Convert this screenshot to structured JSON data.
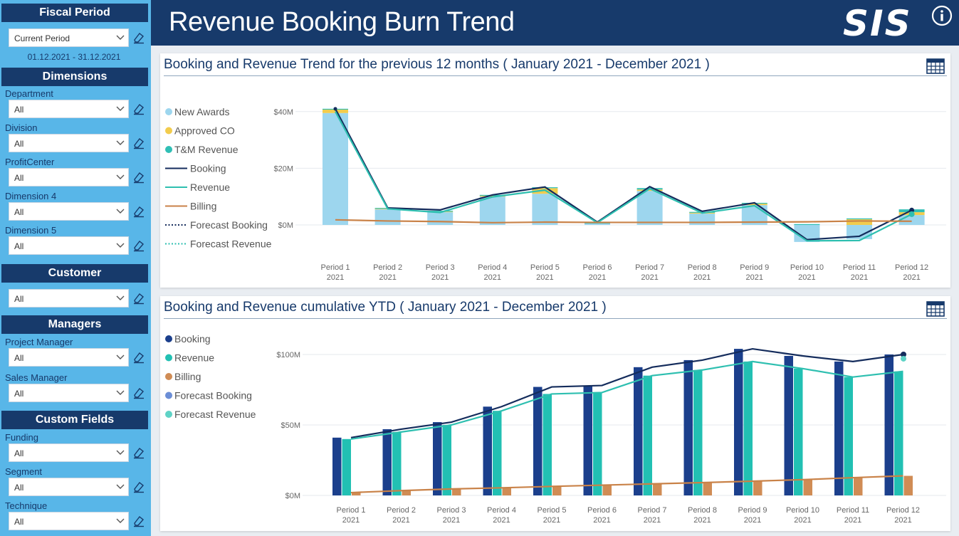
{
  "sidebar": {
    "fiscal_period": {
      "heading": "Fiscal Period",
      "selected": "Current Period",
      "date_range": "01.12.2021 - 31.12.2021"
    },
    "dimensions": {
      "heading": "Dimensions",
      "fields": [
        {
          "label": "Department",
          "value": "All"
        },
        {
          "label": "Division",
          "value": "All"
        },
        {
          "label": "ProfitCenter",
          "value": "All"
        },
        {
          "label": "Dimension 4",
          "value": "All"
        },
        {
          "label": "Dimension 5",
          "value": "All"
        }
      ]
    },
    "customer": {
      "heading": "Customer",
      "value": "All"
    },
    "managers": {
      "heading": "Managers",
      "fields": [
        {
          "label": "Project Manager",
          "value": "All"
        },
        {
          "label": "Sales Manager",
          "value": "All"
        }
      ]
    },
    "custom_fields": {
      "heading": "Custom Fields",
      "fields": [
        {
          "label": "Funding",
          "value": "All"
        },
        {
          "label": "Segment",
          "value": "All"
        },
        {
          "label": "Technique",
          "value": "All"
        }
      ]
    }
  },
  "header": {
    "title": "Revenue Booking Burn Trend",
    "logo_text": "SIS",
    "info_icon": "info-circle-icon"
  },
  "colors": {
    "navy": "#173a6b",
    "sidebar": "#58b6e8",
    "new_awards": "#9dd6ee",
    "approved_co": "#f2cc4d",
    "tm_revenue": "#30bfb5",
    "booking": "#142c5c",
    "revenue": "#2ebfb0",
    "billing": "#c98248",
    "bar_booking": "#1b3f8c",
    "bar_revenue": "#22c0b3",
    "bar_billing": "#d08c55",
    "forecast_booking": "#6b8ed6",
    "forecast_revenue": "#5fd3c6"
  },
  "chart_data": [
    {
      "type": "bar",
      "title": "Booking and Revenue Trend for the previous 12 months ( January 2021 - December 2021 )",
      "categories": [
        "Period 1|2021",
        "Period 2|2021",
        "Period 3|2021",
        "Period 4|2021",
        "Period 5|2021",
        "Period 6|2021",
        "Period 7|2021",
        "Period 8|2021",
        "Period 9|2021",
        "Period 10|2021",
        "Period 11|2021",
        "Period 12|2021"
      ],
      "y_ticks": [
        "$40M",
        "$20M",
        "$0M"
      ],
      "y_tick_values": [
        40,
        20,
        0
      ],
      "ylim": [
        -7,
        45
      ],
      "unit": "$M",
      "legend": [
        "New Awards",
        "Approved CO",
        "T&M Revenue",
        "Booking",
        "Revenue",
        "Billing",
        "Forecast Booking",
        "Forecast Revenue"
      ],
      "legend_position": "left",
      "stacked_series": [
        {
          "name": "New Awards",
          "values": [
            39.5,
            5.5,
            4.5,
            10.0,
            11.0,
            0.5,
            12.0,
            4.0,
            7.0,
            -6.0,
            -5.0,
            3.5
          ]
        },
        {
          "name": "Approved CO",
          "values": [
            1.2,
            0.2,
            0.2,
            0.3,
            2.0,
            0.0,
            0.5,
            0.3,
            0.5,
            0.0,
            2.0,
            1.0
          ]
        },
        {
          "name": "T&M Revenue",
          "values": [
            0.3,
            0.3,
            0.3,
            0.3,
            0.3,
            0.3,
            0.5,
            0.3,
            0.3,
            0.3,
            0.3,
            1.0
          ]
        }
      ],
      "series": [
        {
          "name": "Booking",
          "values": [
            41.0,
            6.0,
            5.3,
            10.6,
            13.4,
            1.0,
            13.5,
            4.8,
            7.8,
            -5.2,
            -4.0,
            5.2
          ]
        },
        {
          "name": "Revenue",
          "values": [
            40.0,
            5.7,
            4.4,
            9.9,
            12.3,
            0.8,
            12.8,
            4.2,
            6.8,
            -5.6,
            -5.5,
            3.8
          ]
        },
        {
          "name": "Billing",
          "values": [
            1.8,
            1.4,
            1.2,
            0.8,
            1.0,
            0.9,
            0.9,
            0.9,
            1.0,
            1.1,
            1.4,
            1.3
          ]
        }
      ]
    },
    {
      "type": "bar",
      "title": "Booking and Revenue cumulative YTD ( January 2021 - December 2021 )",
      "categories": [
        "Period 1|2021",
        "Period 2|2021",
        "Period 3|2021",
        "Period 4|2021",
        "Period 5|2021",
        "Period 6|2021",
        "Period 7|2021",
        "Period 8|2021",
        "Period 9|2021",
        "Period 10|2021",
        "Period 11|2021",
        "Period 12|2021"
      ],
      "y_ticks": [
        "$100M",
        "$50M",
        "$0M"
      ],
      "y_tick_values": [
        100,
        50,
        0
      ],
      "ylim": [
        0,
        108
      ],
      "unit": "$M",
      "legend": [
        "Booking",
        "Revenue",
        "Billing",
        "Forecast Booking",
        "Forecast Revenue"
      ],
      "legend_position": "left",
      "series": [
        {
          "name": "Booking",
          "values": [
            41,
            47,
            52,
            63,
            77,
            78,
            91,
            96,
            104,
            99,
            95,
            100
          ]
        },
        {
          "name": "Revenue",
          "values": [
            40,
            45,
            50,
            60,
            72,
            73,
            85,
            89,
            95,
            90,
            84,
            88
          ]
        },
        {
          "name": "Billing",
          "values": [
            2,
            3.4,
            4.6,
            5.4,
            6.4,
            7.3,
            8.2,
            9.1,
            10.1,
            11.2,
            12.6,
            13.9
          ]
        }
      ]
    }
  ]
}
